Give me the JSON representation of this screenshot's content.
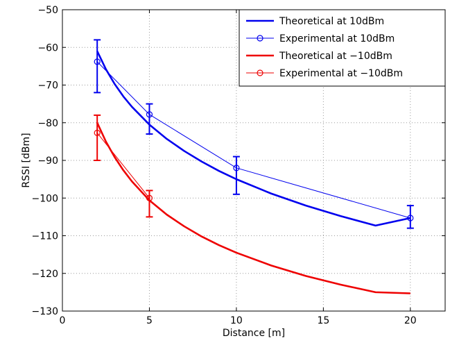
{
  "chart_data": {
    "type": "line",
    "xlabel": "Distance [m]",
    "ylabel": "RSSI [dBm]",
    "xlim": [
      0,
      22
    ],
    "ylim": [
      -130,
      -50
    ],
    "xticks": [
      0,
      5,
      10,
      15,
      20
    ],
    "yticks": [
      -50,
      -60,
      -70,
      -80,
      -90,
      -100,
      -110,
      -120,
      -130
    ],
    "xtick_labels": [
      "0",
      "5",
      "10",
      "15",
      "20"
    ],
    "ytick_labels": [
      "−50",
      "−60",
      "−70",
      "−80",
      "−90",
      "−100",
      "−110",
      "−120",
      "−130"
    ],
    "grid": true,
    "legend_position": "top-right",
    "series": [
      {
        "name": "Theoretical at 10dBm",
        "kind": "theoretical",
        "color": "#0000ee",
        "x": [
          2,
          2.5,
          3,
          3.5,
          4,
          5,
          6,
          7,
          8,
          9,
          10,
          12,
          14,
          16,
          18,
          20
        ],
        "y": [
          -61.0,
          -65.8,
          -69.7,
          -73.0,
          -75.8,
          -80.5,
          -84.3,
          -87.5,
          -90.3,
          -92.8,
          -95.0,
          -98.8,
          -102.0,
          -104.8,
          -107.3,
          -105.3
        ]
      },
      {
        "name": "Experimental at 10dBm",
        "kind": "experimental",
        "color": "#0000ee",
        "x": [
          2,
          5,
          10,
          20
        ],
        "y": [
          -63.8,
          -77.8,
          -92.0,
          -105.3
        ],
        "err_low": [
          -72,
          -83,
          -99,
          -108
        ],
        "err_high": [
          -58,
          -75,
          -89,
          -102
        ]
      },
      {
        "name": "Theoretical at −10dBm",
        "kind": "theoretical",
        "color": "#ee0000",
        "x": [
          2,
          2.5,
          3,
          3.5,
          4,
          5,
          6,
          7,
          8,
          9,
          10,
          12,
          14,
          16,
          18,
          20
        ],
        "y": [
          -80.0,
          -85.0,
          -89.1,
          -92.6,
          -95.6,
          -100.6,
          -104.4,
          -107.5,
          -110.2,
          -112.5,
          -114.5,
          -117.9,
          -120.7,
          -123.0,
          -125.0,
          -125.3
        ]
      },
      {
        "name": "Experimental at −10dBm",
        "kind": "experimental",
        "color": "#ee0000",
        "x": [
          2,
          5
        ],
        "y": [
          -82.7,
          -100.0
        ],
        "err_low": [
          -90,
          -105
        ],
        "err_high": [
          -78,
          -98
        ]
      }
    ]
  }
}
